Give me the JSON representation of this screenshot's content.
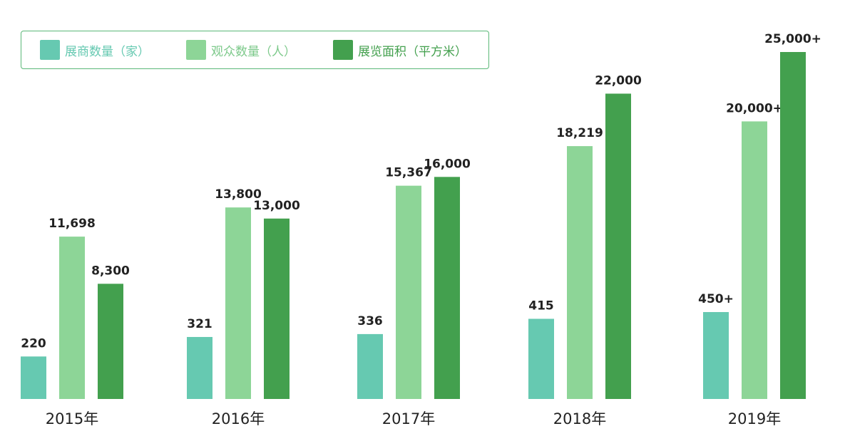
{
  "chart_data": {
    "type": "bar",
    "categories": [
      "2015年",
      "2016年",
      "2017年",
      "2018年",
      "2019年"
    ],
    "series": [
      {
        "name": "展商数量（家）",
        "color": "#66c9b1",
        "values": [
          220,
          321,
          336,
          415,
          450
        ],
        "labels": [
          "220",
          "321",
          "336",
          "415",
          "450+"
        ]
      },
      {
        "name": "观众数量（人）",
        "color": "#8dd597",
        "values": [
          11698,
          13800,
          15367,
          18219,
          20000
        ],
        "labels": [
          "11,698",
          "13,800",
          "15,367",
          "18,219",
          "20,000+"
        ]
      },
      {
        "name": "展览面积（平方米）",
        "color": "#43a04e",
        "values": [
          8300,
          13000,
          16000,
          22000,
          25000
        ],
        "labels": [
          "8,300",
          "13,000",
          "16,000",
          "22,000",
          "25,000+"
        ]
      }
    ],
    "legend": "top-left",
    "grid": false
  }
}
